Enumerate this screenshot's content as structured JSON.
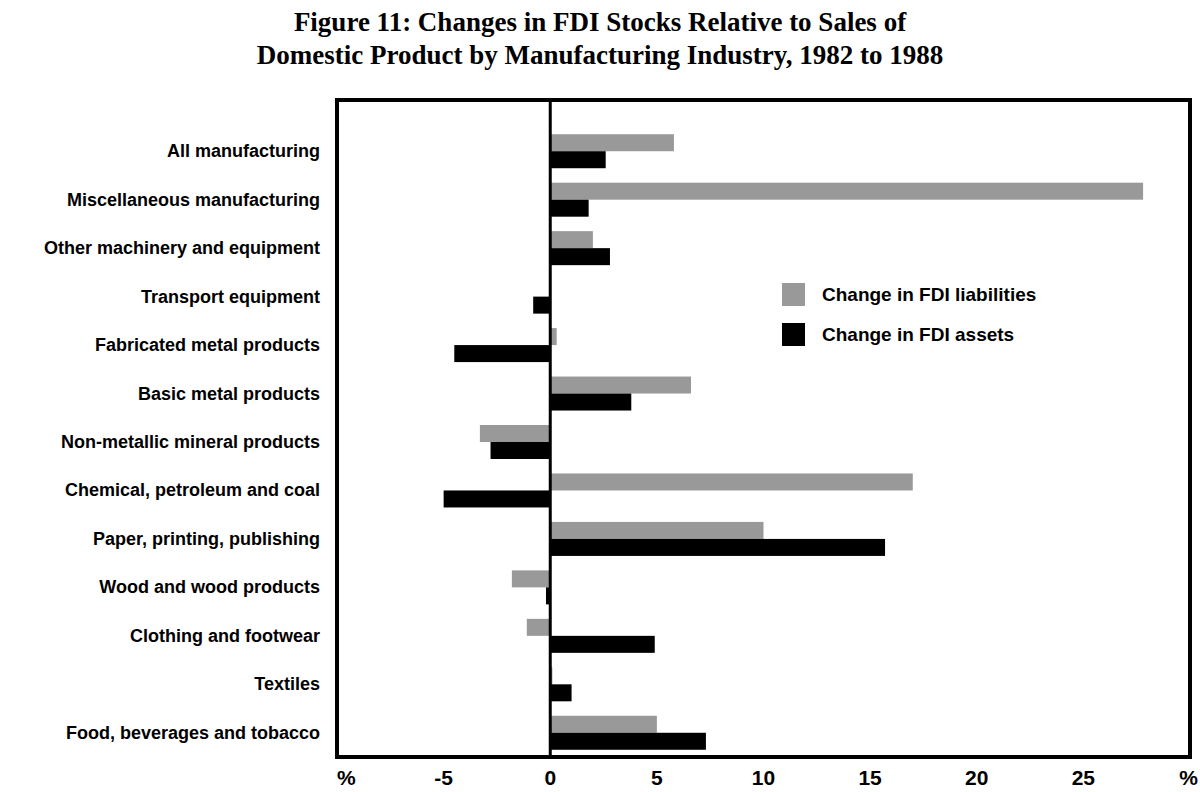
{
  "chart_data": {
    "type": "bar",
    "title": "Figure 11: Changes in FDI Stocks Relative to Sales of Domestic Product by Manufacturing Industry, 1982 to 1988",
    "orientation": "horizontal",
    "categories": [
      "All manufacturing",
      "Miscellaneous manufacturing",
      "Other machinery and equipment",
      "Transport equipment",
      "Fabricated metal products",
      "Basic metal products",
      "Non-metallic mineral products",
      "Chemical, petroleum and coal",
      "Paper, printing, publishing",
      "Wood and wood products",
      "Clothing and footwear",
      "Textiles",
      "Food, beverages and tobacco"
    ],
    "series": [
      {
        "name": "Change in FDI liabilities",
        "color": "#999999",
        "values": [
          5.8,
          27.8,
          2.0,
          0,
          0.3,
          6.6,
          -3.3,
          17.0,
          10.0,
          -1.8,
          -1.1,
          0.1,
          5.0
        ]
      },
      {
        "name": "Change in FDI assets",
        "color": "#000000",
        "values": [
          2.6,
          1.8,
          2.8,
          -0.8,
          -4.5,
          3.8,
          -2.8,
          -5.0,
          15.7,
          -0.2,
          4.9,
          1.0,
          7.3
        ]
      }
    ],
    "xlim": [
      -10,
      30
    ],
    "xticks": [
      {
        "value": -10,
        "label": "%"
      },
      -5,
      0,
      5,
      10,
      15,
      20,
      25,
      {
        "value": 30,
        "label": "%"
      }
    ],
    "grid": false,
    "legend": "upper right"
  }
}
